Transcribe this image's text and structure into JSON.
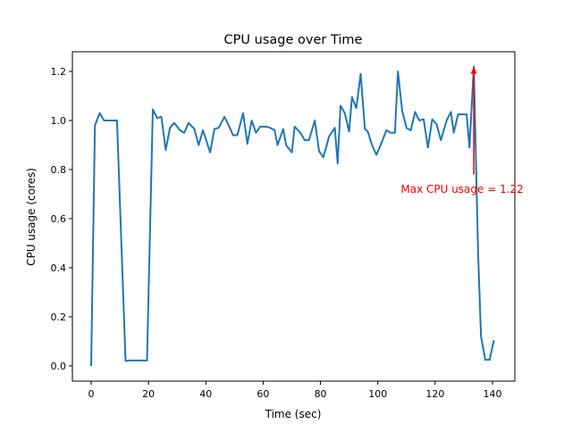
{
  "chart_data": {
    "type": "line",
    "title": "CPU usage over Time",
    "xlabel": "Time (sec)",
    "ylabel": "CPU usage (cores)",
    "xlim": [
      -6.55,
      147.8
    ],
    "ylim": [
      -0.062,
      1.28
    ],
    "xticks": [
      0,
      20,
      40,
      60,
      80,
      100,
      120,
      140
    ],
    "xtick_labels": [
      "0",
      "20",
      "40",
      "60",
      "80",
      "100",
      "120",
      "140"
    ],
    "yticks": [
      0.0,
      0.2,
      0.4,
      0.6,
      0.8,
      1.0,
      1.2
    ],
    "ytick_labels": [
      "0.0",
      "0.2",
      "0.4",
      "0.6",
      "0.8",
      "1.0",
      "1.2"
    ],
    "grid": false,
    "line_color": "#1f77b4",
    "annotation": {
      "text": "Max CPU usage = 1.22",
      "color": "#ff0000",
      "point": [
        133.5,
        1.22
      ],
      "text_pos": [
        108,
        0.72
      ],
      "arrow_tail": [
        133.5,
        0.78
      ]
    },
    "series": [
      {
        "x": [
          0,
          1.3,
          3,
          4.5,
          6,
          7.5,
          9,
          12,
          13.5,
          15,
          17,
          19.5,
          21.5,
          23,
          24.5,
          26,
          27.5,
          29,
          31,
          32.5,
          34,
          36,
          37.5,
          39,
          41.5,
          43,
          44.5,
          46.5,
          48,
          49.5,
          51,
          53,
          54.5,
          56,
          57.5,
          59,
          61,
          62.5,
          64,
          65,
          67,
          68,
          70,
          71,
          73,
          74.5,
          76,
          78,
          79.5,
          81,
          83,
          85,
          86,
          87,
          88.5,
          90,
          91,
          92.5,
          94,
          95.5,
          96.5,
          98,
          99.5,
          101,
          103,
          104.5,
          106,
          107,
          108.5,
          110,
          111.5,
          113,
          114.5,
          116,
          117.5,
          119,
          120.5,
          122,
          124,
          125.5,
          126.5,
          128,
          129.5,
          131,
          132,
          133.5,
          135,
          136,
          137.5,
          139,
          140.5
        ],
        "y": [
          0,
          0.98,
          1.03,
          1.0,
          1.0,
          1.0,
          1.0,
          0.02,
          0.022,
          0.022,
          0.022,
          0.022,
          1.045,
          1.01,
          1.015,
          0.88,
          0.97,
          0.99,
          0.96,
          0.95,
          0.99,
          0.965,
          0.9,
          0.96,
          0.87,
          0.965,
          0.97,
          1.015,
          0.98,
          0.94,
          0.94,
          1.03,
          0.905,
          1.0,
          0.95,
          0.975,
          0.975,
          0.97,
          0.96,
          0.9,
          0.965,
          0.9,
          0.87,
          0.975,
          0.95,
          0.92,
          0.92,
          1.0,
          0.875,
          0.85,
          0.935,
          0.97,
          0.825,
          1.06,
          1.03,
          0.955,
          1.095,
          1.05,
          1.19,
          0.965,
          0.955,
          0.9,
          0.86,
          0.9,
          0.96,
          0.95,
          0.95,
          1.2,
          1.04,
          0.97,
          0.96,
          1.035,
          1.0,
          1.005,
          0.89,
          1.005,
          0.985,
          0.92,
          1.0,
          1.035,
          0.95,
          1.025,
          1.025,
          1.025,
          0.89,
          1.22,
          0.45,
          0.12,
          0.025,
          0.025,
          0.105
        ]
      }
    ]
  }
}
